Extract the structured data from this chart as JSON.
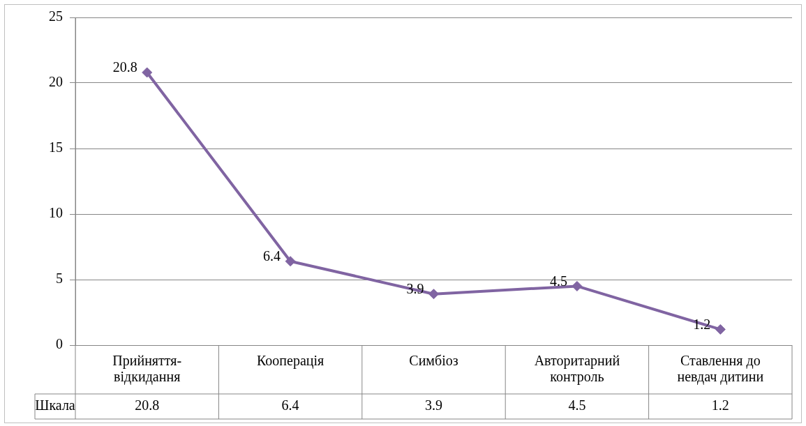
{
  "chart_data": {
    "type": "line",
    "categories": [
      "Прийняття-відкидання",
      "Кооперація",
      "Симбіоз",
      "Авторитарний контроль",
      "Ставлення до невдач дитини"
    ],
    "series": [
      {
        "name": "Шкала",
        "color": "#8064a2",
        "values": [
          20.8,
          6.4,
          3.9,
          4.5,
          1.2
        ],
        "value_labels": [
          "20.8",
          "6.4",
          "3.9",
          "4.5",
          "1.2"
        ]
      }
    ],
    "annotations": [
      "20.8",
      "6.4",
      "3.9",
      "4.5",
      "1.2"
    ],
    "ylim": [
      0,
      25
    ],
    "yticks": [
      0,
      5,
      10,
      15,
      20,
      25
    ],
    "grid": "y",
    "legend": false,
    "marker": "diamond",
    "line_style": "solid",
    "data_labels": true
  }
}
